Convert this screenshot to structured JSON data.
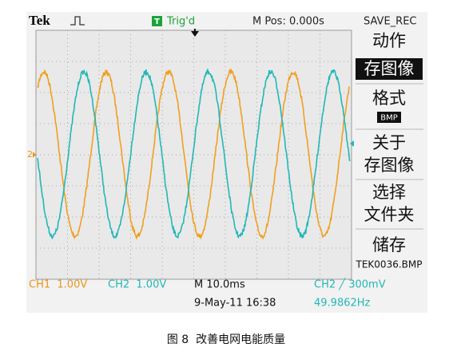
{
  "top_bar": {
    "brand": "Tek",
    "trigger_mark": "T",
    "trigger_status": "Trig'd",
    "position": "M Pos: 0.000s",
    "menu_title": "SAVE_REC"
  },
  "channel_marker": "2",
  "menu": {
    "action": {
      "label": "动作",
      "value": "存图像"
    },
    "format": {
      "label": "格式",
      "value": "BMP"
    },
    "about": {
      "lines": [
        "关于",
        "存图像"
      ]
    },
    "select": {
      "lines": [
        "选择",
        "文件夹"
      ]
    },
    "save": {
      "label": "储存",
      "value": "TEK0036.BMP"
    }
  },
  "status_bar": {
    "ch1": "CH1  1.00V",
    "ch2": "CH2  1.00V",
    "timebase": "M 10.0ms",
    "datetime": "9-May-11 16:38",
    "trigger": "CH2 ╱ 300mV",
    "frequency": "49.9862Hz"
  },
  "caption": "图 8  改善电网电能质量"
}
